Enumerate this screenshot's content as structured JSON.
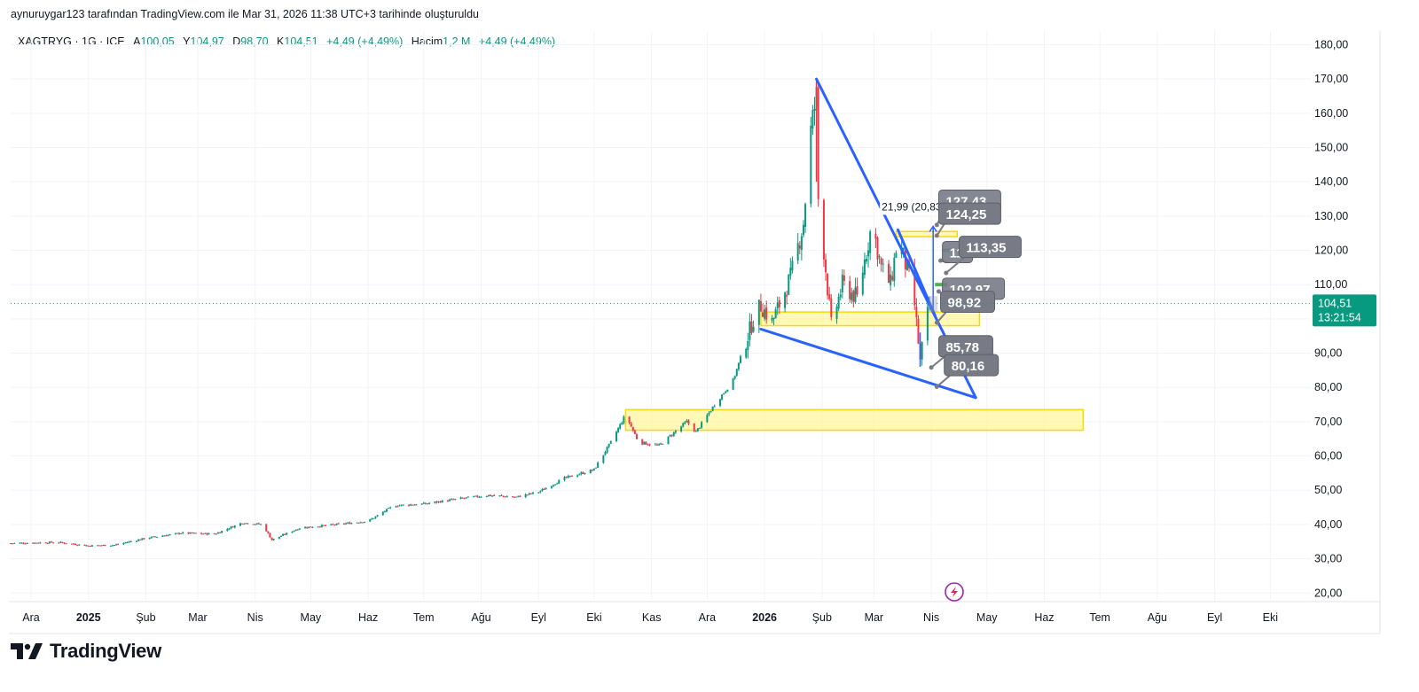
{
  "header": {
    "attribution": "aynuruygar123 tarafından TradingView.com ile Mar 31, 2026 11:38 UTC+3 tarihinde oluşturuldu"
  },
  "legend": {
    "symbol": "XAGTRYG · 1G · ICE",
    "open_label": "A",
    "open_value": "100,05",
    "high_label": "Y",
    "high_value": "104,97",
    "low_label": "D",
    "low_value": "98,70",
    "close_label": "K",
    "close_value": "104,51",
    "change": "+4,49 (+4,49%)",
    "volume_label": "Hacim",
    "volume_value": "1,2 M",
    "volume_change": "+4,49 (+4,49%)"
  },
  "brand": {
    "name": "TradingView"
  },
  "colors": {
    "up": "#089981",
    "down": "#f23645",
    "trendline": "#2962ff",
    "zone_fill": "#fff59d",
    "zone_border": "#f5d90a",
    "label_bg": "#787b86",
    "price_tag": "#089981",
    "grid": "#f0f3fa",
    "text": "#131722"
  },
  "chart_data": {
    "type": "candlestick",
    "symbol": "XAGTRYG",
    "interval": "1G",
    "exchange": "ICE",
    "current_price": 104.51,
    "current_price_label": "104,51",
    "countdown": "13:21:54",
    "y_range": [
      18,
      184
    ],
    "y_ticks": [
      "180,00",
      "170,00",
      "160,00",
      "150,00",
      "140,00",
      "130,00",
      "120,00",
      "110,00",
      "100,00",
      "90,00",
      "80,00",
      "70,00",
      "60,00",
      "50,00",
      "40,00",
      "30,00",
      "20,00"
    ],
    "y_tick_values": [
      180,
      170,
      160,
      150,
      140,
      130,
      120,
      110,
      100,
      90,
      80,
      70,
      60,
      50,
      40,
      30,
      20
    ],
    "x_range": [
      "2024-11-20",
      "2026-10-20"
    ],
    "x_labels": [
      {
        "date": "2024-12-01",
        "label": "Ara",
        "bold": false
      },
      {
        "date": "2025-01-01",
        "label": "2025",
        "bold": true
      },
      {
        "date": "2025-02-01",
        "label": "Şub",
        "bold": false
      },
      {
        "date": "2025-03-01",
        "label": "Mar",
        "bold": false
      },
      {
        "date": "2025-04-01",
        "label": "Nis",
        "bold": false
      },
      {
        "date": "2025-05-01",
        "label": "May",
        "bold": false
      },
      {
        "date": "2025-06-01",
        "label": "Haz",
        "bold": false
      },
      {
        "date": "2025-07-01",
        "label": "Tem",
        "bold": false
      },
      {
        "date": "2025-08-01",
        "label": "Ağu",
        "bold": false
      },
      {
        "date": "2025-09-01",
        "label": "Eyl",
        "bold": false
      },
      {
        "date": "2025-10-01",
        "label": "Eki",
        "bold": false
      },
      {
        "date": "2025-11-01",
        "label": "Kas",
        "bold": false
      },
      {
        "date": "2025-12-01",
        "label": "Ara",
        "bold": false
      },
      {
        "date": "2026-01-01",
        "label": "2026",
        "bold": true
      },
      {
        "date": "2026-02-01",
        "label": "Şub",
        "bold": false
      },
      {
        "date": "2026-03-01",
        "label": "Mar",
        "bold": false
      },
      {
        "date": "2026-04-01",
        "label": "Nis",
        "bold": false
      },
      {
        "date": "2026-05-01",
        "label": "May",
        "bold": false
      },
      {
        "date": "2026-06-01",
        "label": "Haz",
        "bold": false
      },
      {
        "date": "2026-07-01",
        "label": "Tem",
        "bold": false
      },
      {
        "date": "2026-08-01",
        "label": "Ağu",
        "bold": false
      },
      {
        "date": "2026-09-01",
        "label": "Eyl",
        "bold": false
      },
      {
        "date": "2026-10-01",
        "label": "Eki",
        "bold": false
      }
    ],
    "price_path": [
      [
        "2024-11-20",
        34.5
      ],
      [
        "2024-12-15",
        34.8
      ],
      [
        "2025-01-01",
        33.8
      ],
      [
        "2025-01-15",
        34.0
      ],
      [
        "2025-02-01",
        36.0
      ],
      [
        "2025-02-20",
        37.5
      ],
      [
        "2025-03-10",
        37.2
      ],
      [
        "2025-03-25",
        40.5
      ],
      [
        "2025-04-05",
        40.0
      ],
      [
        "2025-04-10",
        35.5
      ],
      [
        "2025-04-25",
        39.0
      ],
      [
        "2025-05-15",
        40.0
      ],
      [
        "2025-06-01",
        41.0
      ],
      [
        "2025-06-15",
        45.5
      ],
      [
        "2025-07-01",
        46.0
      ],
      [
        "2025-07-20",
        47.5
      ],
      [
        "2025-08-05",
        48.5
      ],
      [
        "2025-08-20",
        48.0
      ],
      [
        "2025-09-01",
        49.5
      ],
      [
        "2025-09-15",
        53.5
      ],
      [
        "2025-10-01",
        56.0
      ],
      [
        "2025-10-10",
        64.0
      ],
      [
        "2025-10-18",
        72.0
      ],
      [
        "2025-10-25",
        64.0
      ],
      [
        "2025-11-05",
        63.0
      ],
      [
        "2025-11-20",
        70.0
      ],
      [
        "2025-11-25",
        67.0
      ],
      [
        "2025-12-05",
        75.0
      ],
      [
        "2025-12-15",
        82.0
      ],
      [
        "2025-12-26",
        100.0
      ],
      [
        "2025-12-30",
        104.0
      ],
      [
        "2026-01-05",
        99.0
      ],
      [
        "2026-01-15",
        112.0
      ],
      [
        "2026-01-22",
        128.0
      ],
      [
        "2026-01-26",
        155.0
      ],
      [
        "2026-01-29",
        165.0
      ],
      [
        "2026-01-30",
        135.0
      ],
      [
        "2026-02-02",
        120.0
      ],
      [
        "2026-02-06",
        98.0
      ],
      [
        "2026-02-12",
        110.0
      ],
      [
        "2026-02-20",
        106.0
      ],
      [
        "2026-02-28",
        128.0
      ],
      [
        "2026-03-05",
        115.0
      ],
      [
        "2026-03-10",
        110.0
      ],
      [
        "2026-03-14",
        124.0
      ],
      [
        "2026-03-20",
        112.0
      ],
      [
        "2026-03-23",
        104.0
      ],
      [
        "2026-03-26",
        88.0
      ],
      [
        "2026-03-29",
        98.0
      ],
      [
        "2026-03-31",
        104.5
      ]
    ],
    "candle_seed": 7,
    "trendlines": [
      {
        "from": [
          "2026-01-29",
          170
        ],
        "to": [
          "2026-04-25",
          77
        ]
      },
      {
        "from": [
          "2025-12-30",
          97
        ],
        "to": [
          "2026-04-25",
          77
        ]
      },
      {
        "from": [
          "2026-03-14",
          126
        ],
        "to": [
          "2026-04-03",
          101
        ]
      }
    ],
    "zones": [
      {
        "x0": "2025-10-18",
        "x1": "2026-06-22",
        "y0": 67.5,
        "y1": 73.5
      },
      {
        "x0": "2025-12-30",
        "x1": "2026-04-27",
        "y0": 98.0,
        "y1": 102.0
      },
      {
        "x0": "2026-03-13",
        "x1": "2026-04-15",
        "y0": 124.0,
        "y1": 125.5
      }
    ],
    "measure": {
      "date": "2026-04-02",
      "from": 102.0,
      "to": 127.0,
      "label": "21,99 (20,83"
    },
    "price_labels": [
      {
        "text": "127,43",
        "anchor": [
          "2026-04-04",
          127.4
        ],
        "box": [
          "2026-04-05",
          134.5
        ],
        "hidden": true
      },
      {
        "text": "124,25",
        "anchor": [
          "2026-04-04",
          124.3
        ],
        "box": [
          "2026-04-05",
          130.7
        ],
        "hidden": false
      },
      {
        "text": "11",
        "anchor": [
          "2026-04-06",
          117.0
        ],
        "box": [
          "2026-04-07",
          119.5
        ],
        "hidden": true
      },
      {
        "text": "113,35",
        "anchor": [
          "2026-04-09",
          113.4
        ],
        "box": [
          "2026-04-16",
          121.0
        ],
        "hidden": false
      },
      {
        "text": "102,97",
        "anchor": [
          "2026-04-05",
          108.0
        ],
        "box": [
          "2026-04-07",
          108.8
        ],
        "hidden": true
      },
      {
        "text": "98,92",
        "anchor": [
          "2026-04-04",
          98.9
        ],
        "box": [
          "2026-04-06",
          105.0
        ],
        "hidden": false
      },
      {
        "text": "85,78",
        "anchor": [
          "2026-04-01",
          85.8
        ],
        "box": [
          "2026-04-05",
          92.0
        ],
        "hidden": false
      },
      {
        "text": "80,16",
        "anchor": [
          "2026-04-04",
          80.2
        ],
        "box": [
          "2026-04-08",
          86.5
        ],
        "hidden": false
      }
    ],
    "small_marks": [
      {
        "date": "2026-04-07",
        "y": 120.0,
        "color": "#4caf50"
      },
      {
        "date": "2026-04-03",
        "y": 110.0,
        "color": "#4caf50"
      }
    ],
    "grid": true
  }
}
